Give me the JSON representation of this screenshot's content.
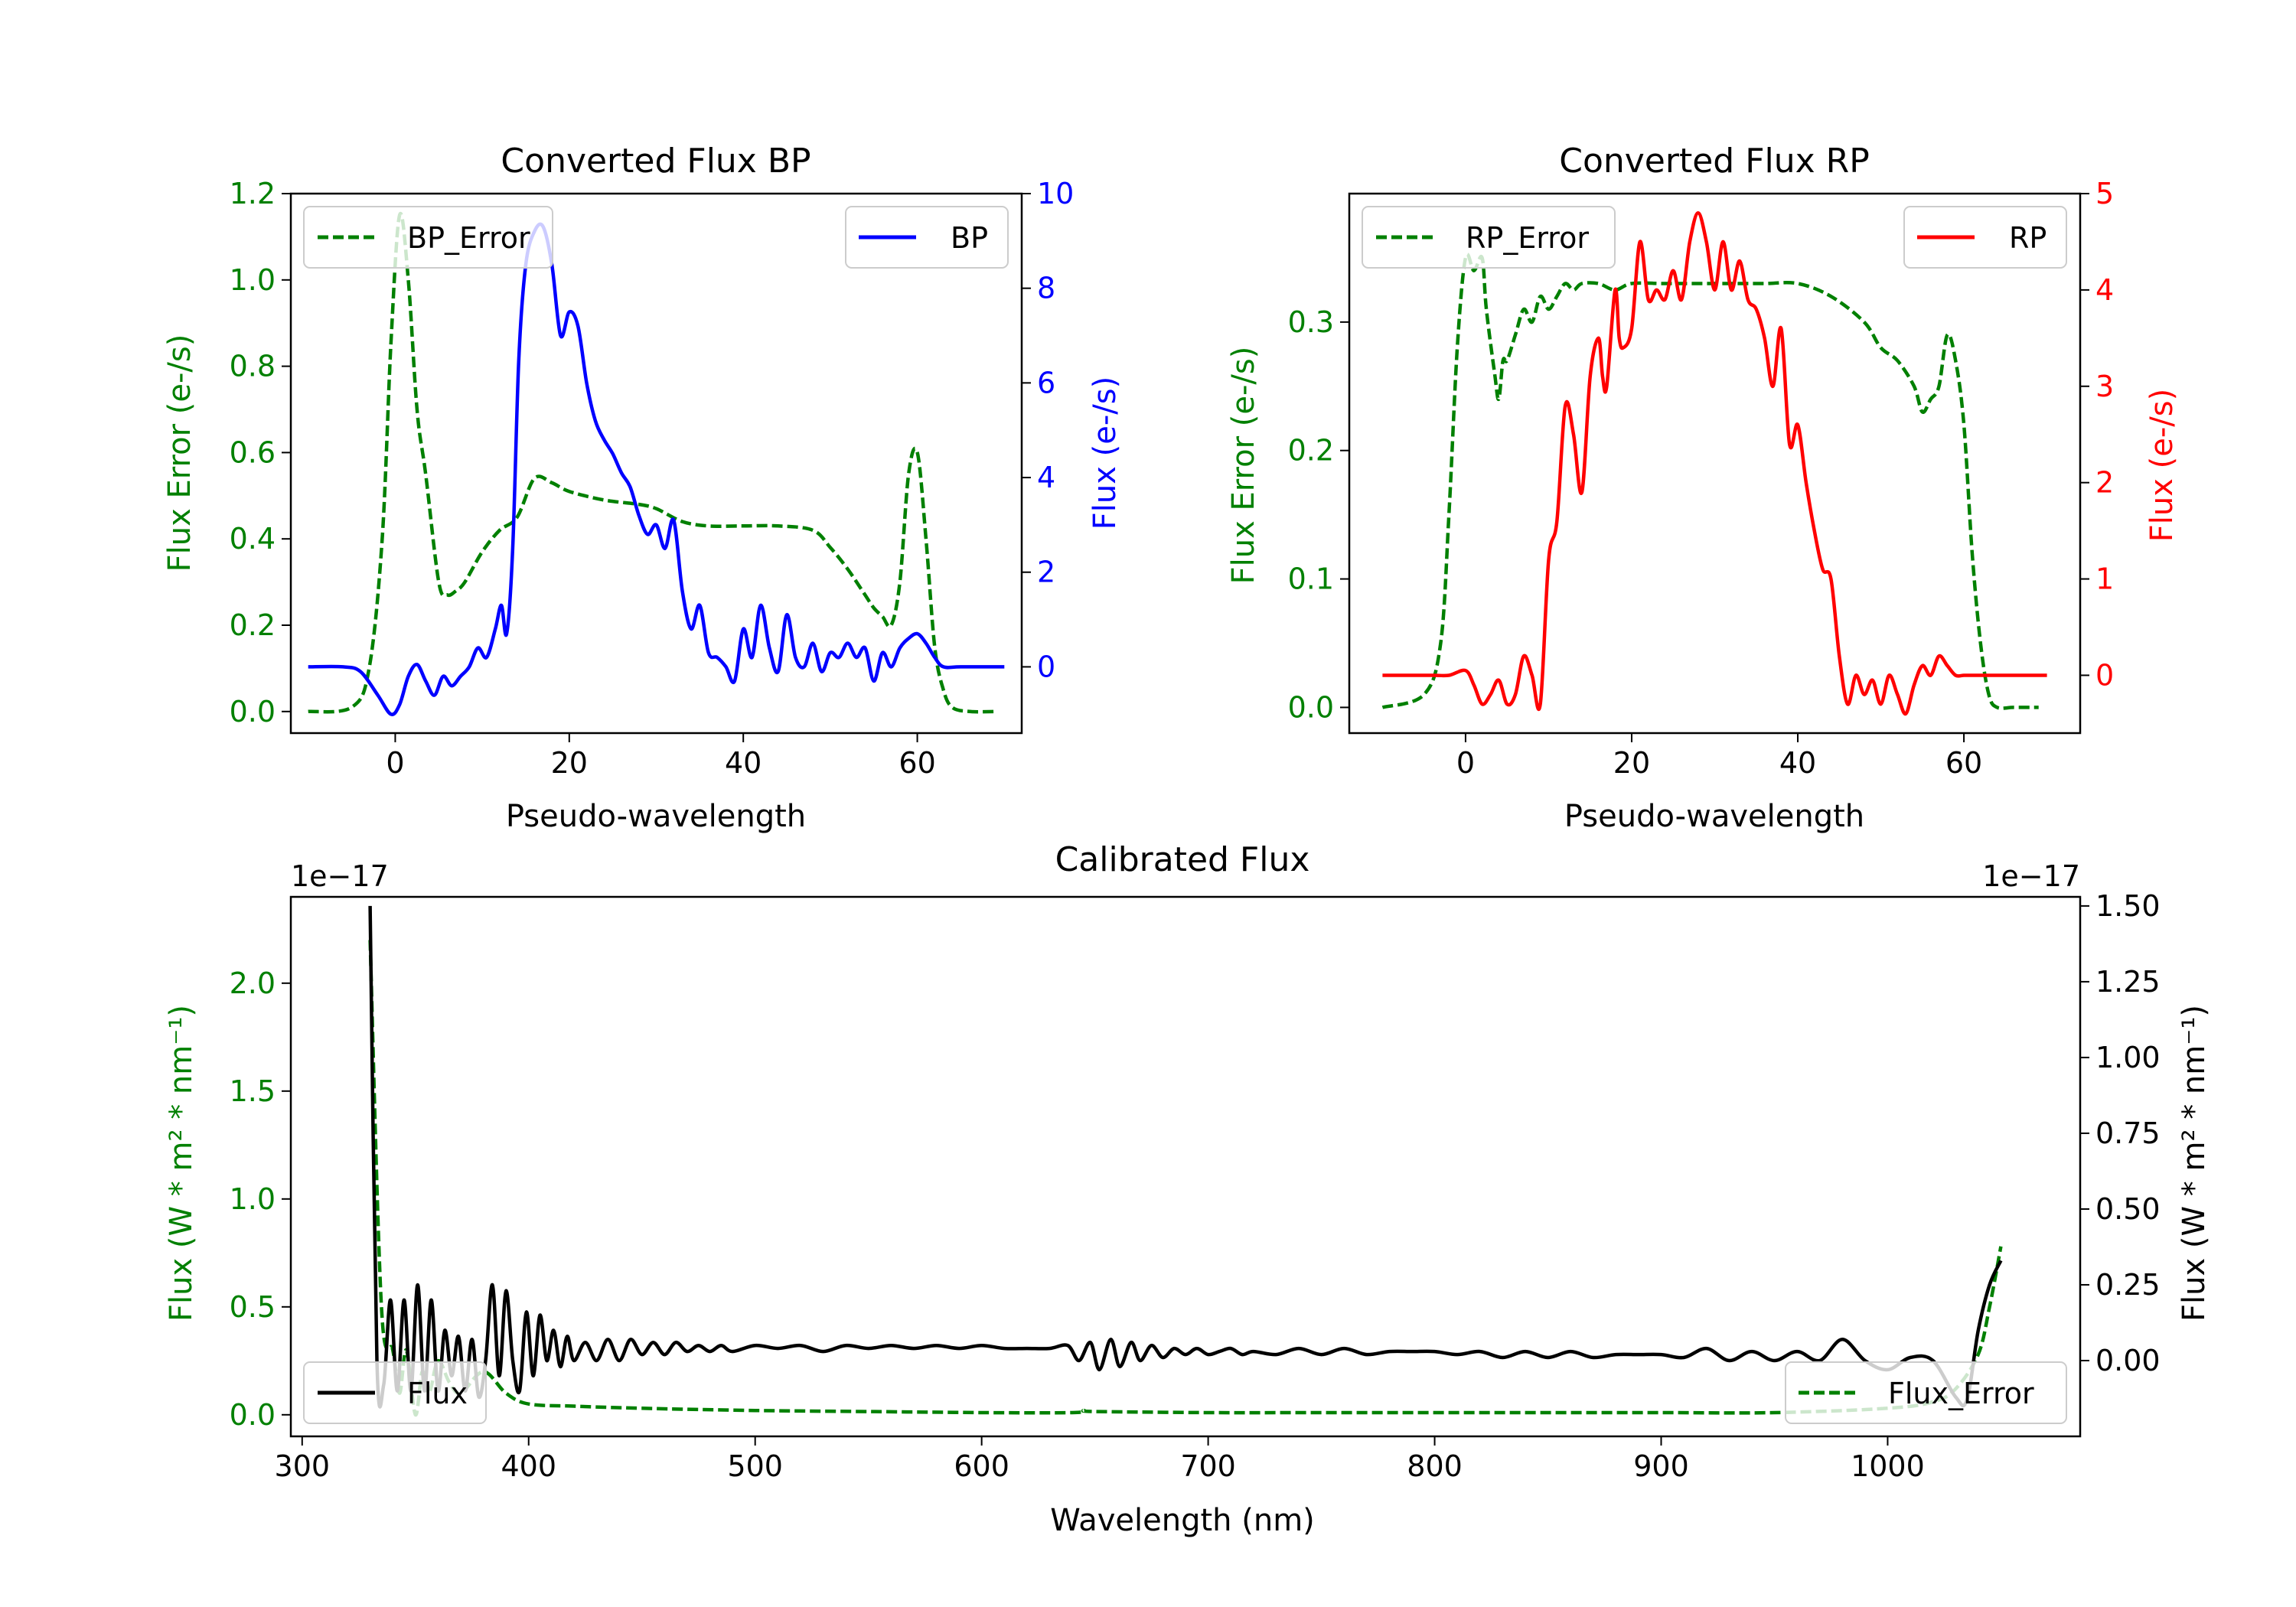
{
  "chart_data": [
    {
      "id": "bp",
      "type": "line",
      "title": "Converted Flux BP",
      "xlabel": "Pseudo-wavelength",
      "ylabel_left": "Flux Error (e-/s)",
      "ylabel_right": "Flux (e-/s)",
      "xlim": [
        -12,
        72
      ],
      "ylim_left": [
        -0.05,
        1.2
      ],
      "ylim_right": [
        -1.4,
        10
      ],
      "xticks": [
        0,
        20,
        40,
        60
      ],
      "xtick_labels": [
        "0",
        "20",
        "40",
        "60"
      ],
      "yticks_left": [
        0,
        0.2,
        0.4,
        0.6,
        0.8,
        1.0,
        1.2
      ],
      "ytick_labels_left": [
        "0.0",
        "0.2",
        "0.4",
        "0.6",
        "0.8",
        "1.0",
        "1.2"
      ],
      "yticks_right": [
        0,
        2,
        4,
        6,
        8,
        10
      ],
      "ytick_labels_right": [
        "0",
        "2",
        "4",
        "6",
        "8",
        "10"
      ],
      "left_color": "#008000",
      "right_color": "#0000ff",
      "series": [
        {
          "name": "BP_Error",
          "axis": "left",
          "color": "#008000",
          "dash": true,
          "x": [
            -10,
            -5,
            -3,
            -1.5,
            -0.5,
            0.5,
            1.5,
            2.5,
            3.5,
            5,
            6,
            7,
            8,
            10,
            12,
            14,
            16,
            18,
            20,
            24,
            28,
            30,
            33,
            36,
            40,
            44,
            48,
            50,
            52,
            54,
            55,
            56,
            57,
            58,
            59,
            60,
            61,
            62,
            63,
            64,
            66,
            69
          ],
          "values": [
            0.0,
            0.01,
            0.1,
            0.4,
            0.85,
            1.15,
            1.0,
            0.7,
            0.55,
            0.3,
            0.27,
            0.28,
            0.3,
            0.37,
            0.42,
            0.45,
            0.54,
            0.53,
            0.51,
            0.49,
            0.48,
            0.47,
            0.44,
            0.43,
            0.43,
            0.43,
            0.42,
            0.38,
            0.33,
            0.27,
            0.24,
            0.22,
            0.2,
            0.3,
            0.55,
            0.6,
            0.4,
            0.15,
            0.05,
            0.01,
            0.0,
            0.0
          ]
        },
        {
          "name": "BP",
          "axis": "right",
          "color": "#0000ff",
          "dash": false,
          "x": [
            -10,
            -6,
            -4,
            -2,
            -0.5,
            0.5,
            1.5,
            2.5,
            3.5,
            4.5,
            5.5,
            6.5,
            7.5,
            8.5,
            9.5,
            10.5,
            11.5,
            12.2,
            12.8,
            13.5,
            14.2,
            15,
            16,
            17,
            18,
            19,
            20,
            21,
            22,
            23,
            24,
            25,
            26,
            27,
            28,
            29,
            30,
            31,
            32,
            33,
            34,
            35,
            36,
            37,
            38,
            39,
            40,
            41,
            42,
            43,
            44,
            45,
            46,
            47,
            48,
            49,
            50,
            51,
            52,
            53,
            54,
            55,
            56,
            57,
            58,
            59,
            60,
            61,
            62,
            63,
            65,
            70
          ],
          "values": [
            0.0,
            0.0,
            -0.1,
            -0.6,
            -1.0,
            -0.8,
            -0.2,
            0.05,
            -0.3,
            -0.6,
            -0.2,
            -0.4,
            -0.2,
            0.0,
            0.4,
            0.2,
            0.8,
            1.3,
            0.7,
            2.5,
            6.5,
            8.5,
            9.2,
            9.3,
            8.5,
            7.0,
            7.5,
            7.2,
            6.0,
            5.2,
            4.8,
            4.5,
            4.1,
            3.8,
            3.2,
            2.8,
            3.0,
            2.5,
            3.1,
            1.6,
            0.8,
            1.3,
            0.3,
            0.2,
            0.0,
            -0.3,
            0.8,
            0.2,
            1.3,
            0.4,
            -0.1,
            1.1,
            0.2,
            0.0,
            0.5,
            -0.1,
            0.3,
            0.2,
            0.5,
            0.2,
            0.4,
            -0.3,
            0.3,
            0.0,
            0.4,
            0.6,
            0.7,
            0.5,
            0.2,
            0.0,
            0.0,
            0.0
          ]
        }
      ]
    },
    {
      "id": "rp",
      "type": "line",
      "title": "Converted Flux RP",
      "xlabel": "Pseudo-wavelength",
      "ylabel_left": "Flux Error (e-/s)",
      "ylabel_right": "Flux (e-/s)",
      "xlim": [
        -14,
        74
      ],
      "ylim_left": [
        -0.02,
        0.4
      ],
      "ylim_right": [
        -0.6,
        5
      ],
      "xticks": [
        0,
        20,
        40,
        60
      ],
      "xtick_labels": [
        "0",
        "20",
        "40",
        "60"
      ],
      "yticks_left": [
        0,
        0.1,
        0.2,
        0.3
      ],
      "ytick_labels_left": [
        "0.0",
        "0.1",
        "0.2",
        "0.3"
      ],
      "yticks_right": [
        0,
        1,
        2,
        3,
        4,
        5
      ],
      "ytick_labels_right": [
        "0",
        "1",
        "2",
        "3",
        "4",
        "5"
      ],
      "left_color": "#008000",
      "right_color": "#ff0000",
      "series": [
        {
          "name": "RP_Error",
          "axis": "left",
          "color": "#008000",
          "dash": true,
          "x": [
            -10,
            -5,
            -3,
            -2,
            -1,
            0,
            1,
            2,
            2.5,
            3.5,
            4,
            4.5,
            5,
            6,
            7,
            8,
            9,
            10,
            11,
            12,
            13,
            14,
            16,
            18,
            20,
            24,
            28,
            32,
            36,
            40,
            44,
            48,
            50,
            52,
            54,
            55,
            56,
            57,
            58,
            59,
            60,
            61,
            62,
            63,
            64,
            66,
            69
          ],
          "values": [
            0.0,
            0.01,
            0.05,
            0.15,
            0.28,
            0.35,
            0.34,
            0.35,
            0.31,
            0.26,
            0.24,
            0.27,
            0.27,
            0.29,
            0.31,
            0.3,
            0.32,
            0.31,
            0.32,
            0.33,
            0.325,
            0.33,
            0.33,
            0.325,
            0.33,
            0.33,
            0.33,
            0.33,
            0.33,
            0.33,
            0.32,
            0.3,
            0.28,
            0.27,
            0.25,
            0.23,
            0.24,
            0.25,
            0.29,
            0.27,
            0.22,
            0.12,
            0.05,
            0.01,
            0.0,
            0.0,
            0.0
          ]
        },
        {
          "name": "RP",
          "axis": "right",
          "color": "#ff0000",
          "dash": false,
          "x": [
            -10,
            -4,
            -2,
            0,
            1,
            2,
            3,
            4,
            5,
            6,
            7,
            8,
            9,
            10,
            11,
            12,
            13,
            14,
            15,
            16,
            16.5,
            17,
            18,
            18.5,
            19,
            20,
            21,
            22,
            23,
            24,
            25,
            26,
            27,
            28,
            29,
            30,
            31,
            32,
            33,
            34,
            35,
            36,
            37,
            38,
            39,
            40,
            41,
            42,
            43,
            44,
            45,
            46,
            47,
            48,
            49,
            50,
            51,
            52,
            53,
            54,
            55,
            56,
            57,
            58,
            59,
            60,
            61,
            62,
            64,
            70
          ],
          "values": [
            0.0,
            0.0,
            0.0,
            0.05,
            -0.1,
            -0.3,
            -0.2,
            -0.05,
            -0.3,
            -0.2,
            0.2,
            0.0,
            -0.3,
            1.2,
            1.6,
            2.8,
            2.5,
            1.9,
            3.1,
            3.5,
            3.1,
            3.0,
            4.0,
            3.5,
            3.4,
            3.6,
            4.5,
            3.9,
            4.0,
            3.9,
            4.2,
            3.9,
            4.5,
            4.8,
            4.5,
            4.0,
            4.5,
            4.0,
            4.3,
            3.9,
            3.8,
            3.5,
            3.0,
            3.6,
            2.4,
            2.6,
            2.0,
            1.5,
            1.1,
            1.0,
            0.2,
            -0.3,
            0.0,
            -0.2,
            -0.05,
            -0.3,
            0.0,
            -0.2,
            -0.4,
            -0.1,
            0.1,
            0.0,
            0.2,
            0.1,
            0.0,
            0.0,
            0.0,
            0.0,
            0.0,
            0.0
          ]
        }
      ]
    },
    {
      "id": "cal",
      "type": "line",
      "title": "Calibrated Flux",
      "xlabel": "Wavelength (nm)",
      "ylabel_left": "Flux (W * m² * nm⁻¹)",
      "ylabel_right": "Flux (W * m² * nm⁻¹)",
      "offset_left": "1e−17",
      "offset_right": "1e−17",
      "xlim": [
        295,
        1085
      ],
      "ylim_left": [
        -0.1,
        2.4
      ],
      "ylim_right": [
        -0.25,
        1.53
      ],
      "xticks": [
        300,
        400,
        500,
        600,
        700,
        800,
        900,
        1000
      ],
      "xtick_labels": [
        "300",
        "400",
        "500",
        "600",
        "700",
        "800",
        "900",
        "1000"
      ],
      "yticks_left": [
        0,
        0.5,
        1.0,
        1.5,
        2.0
      ],
      "ytick_labels_left": [
        "0.0",
        "0.5",
        "1.0",
        "1.5",
        "2.0"
      ],
      "yticks_right": [
        0,
        0.25,
        0.5,
        0.75,
        1.0,
        1.25,
        1.5
      ],
      "ytick_labels_right": [
        "0.00",
        "0.25",
        "0.50",
        "0.75",
        "1.00",
        "1.25",
        "1.50"
      ],
      "left_color": "#008000",
      "right_color": "#000000",
      "series": [
        {
          "name": "Flux_Error",
          "axis": "left",
          "color": "#008000",
          "dash": true,
          "x": [
            330,
            335,
            340,
            343,
            346,
            350,
            353,
            356,
            360,
            365,
            370,
            380,
            390,
            400,
            420,
            450,
            500,
            550,
            600,
            640,
            645,
            650,
            700,
            750,
            800,
            850,
            900,
            950,
            1000,
            1020,
            1030,
            1040,
            1045,
            1050
          ],
          "values": [
            2.2,
            0.5,
            0.3,
            0.1,
            0.3,
            0.0,
            0.2,
            0.1,
            0.25,
            0.15,
            0.1,
            0.2,
            0.1,
            0.05,
            0.04,
            0.03,
            0.02,
            0.015,
            0.01,
            0.01,
            0.02,
            0.015,
            0.01,
            0.01,
            0.01,
            0.01,
            0.01,
            0.01,
            0.03,
            0.06,
            0.12,
            0.28,
            0.5,
            0.78
          ]
        },
        {
          "name": "Flux",
          "axis": "right",
          "color": "#000000",
          "dash": false,
          "x": [
            330,
            333,
            336,
            339,
            342,
            345,
            348,
            351,
            354,
            357,
            360,
            363,
            366,
            369,
            372,
            375,
            378,
            381,
            384,
            387,
            390,
            393,
            396,
            399,
            402,
            405,
            408,
            411,
            414,
            417,
            420,
            425,
            430,
            435,
            440,
            445,
            450,
            455,
            460,
            465,
            470,
            475,
            480,
            485,
            490,
            500,
            510,
            520,
            530,
            540,
            550,
            560,
            570,
            580,
            590,
            600,
            610,
            620,
            630,
            638,
            643,
            648,
            652,
            657,
            661,
            666,
            670,
            675,
            680,
            685,
            690,
            695,
            700,
            705,
            710,
            715,
            720,
            730,
            740,
            750,
            760,
            770,
            780,
            790,
            800,
            810,
            820,
            830,
            840,
            850,
            860,
            870,
            880,
            890,
            900,
            910,
            920,
            930,
            940,
            950,
            960,
            970,
            980,
            990,
            1000,
            1010,
            1020,
            1030,
            1035,
            1040,
            1045,
            1050
          ],
          "values": [
            1.5,
            0.0,
            -0.08,
            0.2,
            -0.1,
            0.2,
            -0.1,
            0.25,
            -0.1,
            0.2,
            -0.1,
            0.1,
            -0.05,
            0.08,
            -0.1,
            0.07,
            -0.12,
            0.0,
            0.25,
            -0.05,
            0.23,
            0.0,
            -0.1,
            0.16,
            -0.05,
            0.15,
            0.0,
            0.1,
            -0.02,
            0.08,
            0.0,
            0.06,
            0.0,
            0.07,
            0.0,
            0.07,
            0.02,
            0.06,
            0.02,
            0.06,
            0.03,
            0.05,
            0.03,
            0.05,
            0.03,
            0.05,
            0.04,
            0.05,
            0.03,
            0.05,
            0.04,
            0.05,
            0.04,
            0.05,
            0.04,
            0.05,
            0.04,
            0.04,
            0.04,
            0.05,
            0.0,
            0.06,
            -0.03,
            0.07,
            -0.02,
            0.06,
            0.0,
            0.05,
            0.01,
            0.04,
            0.02,
            0.04,
            0.02,
            0.03,
            0.04,
            0.02,
            0.03,
            0.02,
            0.04,
            0.02,
            0.04,
            0.02,
            0.03,
            0.03,
            0.03,
            0.02,
            0.03,
            0.01,
            0.03,
            0.01,
            0.03,
            0.01,
            0.02,
            0.02,
            0.02,
            0.01,
            0.04,
            0.0,
            0.03,
            0.0,
            0.03,
            0.0,
            0.07,
            0.0,
            -0.03,
            0.01,
            0.0,
            -0.12,
            -0.13,
            0.1,
            0.25,
            0.33
          ]
        }
      ]
    }
  ]
}
